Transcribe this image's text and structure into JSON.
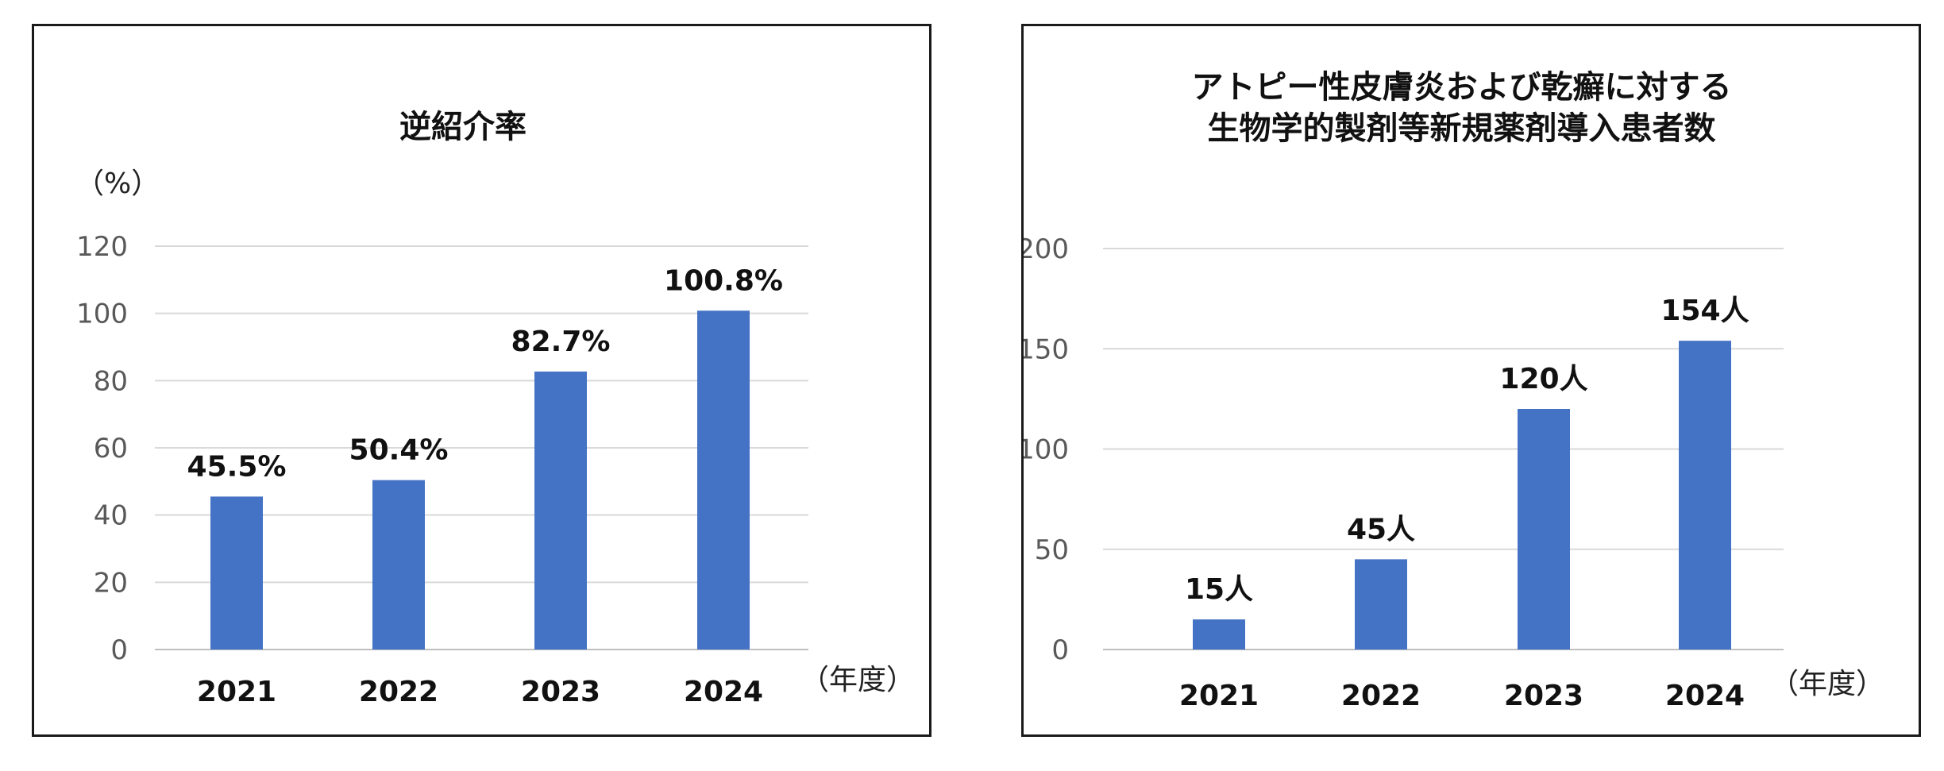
{
  "chart_data": [
    {
      "type": "bar",
      "title": [
        "逆紹介率"
      ],
      "ylabel": "（%）",
      "xlabel": "（年度）",
      "categories": [
        "2021",
        "2022",
        "2023",
        "2024"
      ],
      "values": [
        45.5,
        50.4,
        82.7,
        100.8
      ],
      "data_labels": [
        "45.5%",
        "50.4%",
        "82.7%",
        "100.8%"
      ],
      "ylim": [
        0,
        120
      ],
      "yticks": [
        0,
        20,
        40,
        60,
        80,
        100,
        120
      ],
      "grid": true,
      "bar_color": "#4472c4"
    },
    {
      "type": "bar",
      "title": [
        "アトピー性皮膚炎および乾癬に対する",
        "生物学的製剤等新規薬剤導入患者数"
      ],
      "ylabel": "",
      "xlabel": "（年度）",
      "categories": [
        "2021",
        "2022",
        "2023",
        "2024"
      ],
      "values": [
        15,
        45,
        120,
        154
      ],
      "data_labels": [
        "15人",
        "45人",
        "120人",
        "154人"
      ],
      "ylim": [
        0,
        200
      ],
      "yticks": [
        0,
        50,
        100,
        150,
        200
      ],
      "grid": true,
      "bar_color": "#4472c4"
    }
  ]
}
